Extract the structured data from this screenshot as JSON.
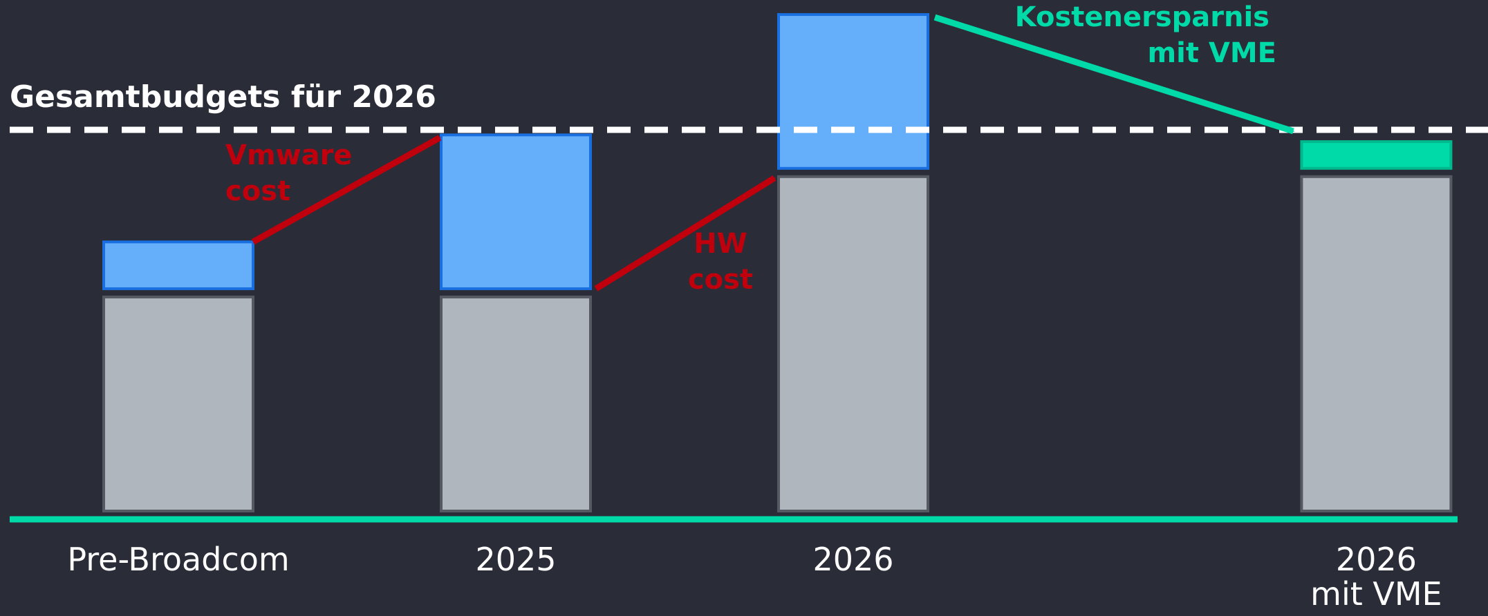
{
  "chart_data": {
    "type": "bar",
    "stacked": true,
    "categories": [
      "Pre-Broadcom",
      "2025",
      "2026",
      "2026 mit VME"
    ],
    "series": [
      {
        "values": [
          32,
          32,
          50,
          50
        ],
        "color": "#b0b6bd"
      },
      {
        "values": [
          7,
          23,
          23,
          4
        ],
        "colors": [
          "#64aefa",
          "#64aefa",
          "#64aefa",
          "#00d9a8"
        ]
      }
    ],
    "reference_line": {
      "label": "Gesamtbudgets für 2026",
      "value": 57,
      "style": "dashed",
      "color": "#ffffff"
    },
    "annotations": [
      {
        "lines": [
          "Vmware",
          "cost"
        ],
        "color": "#c0000c"
      },
      {
        "lines": [
          "HW",
          "cost"
        ],
        "color": "#c0000c"
      },
      {
        "lines": [
          "Kostenersparnis",
          "mit VME"
        ],
        "color": "#00d9a8"
      }
    ],
    "category_lines": [
      [
        "Pre-Broadcom"
      ],
      [
        "2025"
      ],
      [
        "2026"
      ],
      [
        "2026",
        "mit VME"
      ]
    ],
    "ylim": [
      0,
      76
    ],
    "baseline_color": "#00d9a8",
    "grid": false,
    "legend": "none"
  }
}
